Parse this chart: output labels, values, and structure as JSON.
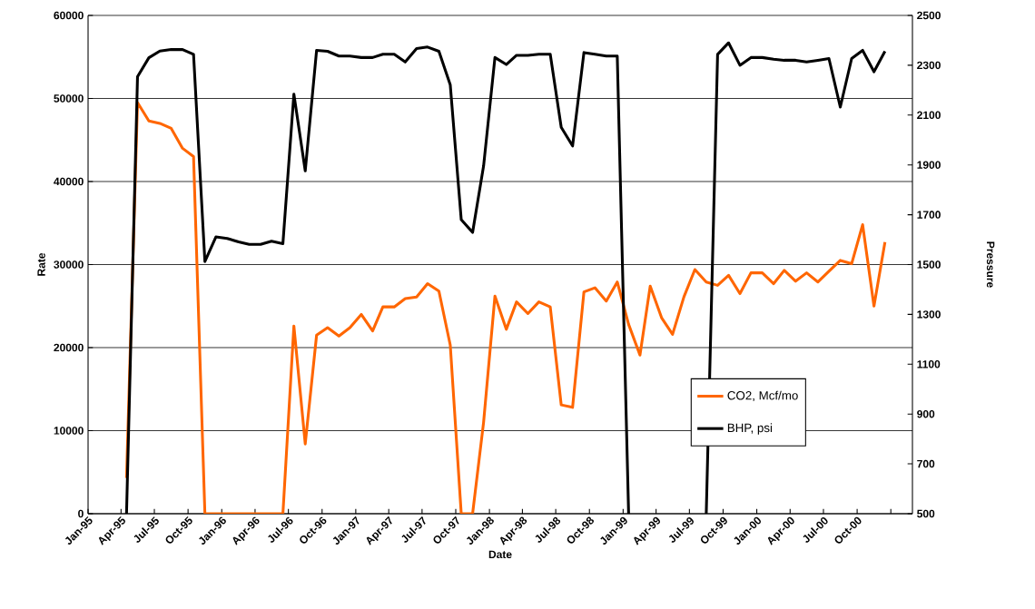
{
  "chart_data": {
    "type": "line",
    "xlabel": "Date",
    "ylabel": "Rate",
    "y2label": "Pressure",
    "x": [
      "1995-04-16",
      "1995-05-16",
      "1995-06-16",
      "1995-07-16",
      "1995-08-16",
      "1995-09-16",
      "1995-10-16",
      "1995-11-16",
      "1995-12-16",
      "1996-01-16",
      "1996-02-16",
      "1996-03-16",
      "1996-04-16",
      "1996-05-16",
      "1996-06-16",
      "1996-07-16",
      "1996-08-16",
      "1996-09-16",
      "1996-10-16",
      "1996-11-16",
      "1996-12-16",
      "1997-01-16",
      "1997-02-16",
      "1997-03-16",
      "1997-04-16",
      "1997-05-16",
      "1997-06-16",
      "1997-07-16",
      "1997-08-16",
      "1997-09-16",
      "1997-10-16",
      "1997-11-16",
      "1997-12-16",
      "1998-01-16",
      "1998-02-16",
      "1998-03-16",
      "1998-04-16",
      "1998-05-16",
      "1998-06-16",
      "1998-07-16",
      "1998-08-16",
      "1998-09-16",
      "1998-10-16",
      "1998-11-16",
      "1998-12-16",
      "1999-01-16",
      "1999-02-16",
      "1999-03-16",
      "1999-04-16",
      "1999-05-16",
      "1999-06-16",
      "1999-07-16",
      "1999-08-16",
      "1999-09-16",
      "1999-10-16",
      "1999-11-16",
      "1999-12-16",
      "2000-01-16",
      "2000-02-16",
      "2000-03-16",
      "2000-04-16",
      "2000-05-16",
      "2000-06-16",
      "2000-07-16",
      "2000-08-16",
      "2000-09-16",
      "2000-10-16",
      "2000-11-16",
      "2000-12-16"
    ],
    "series": [
      {
        "name": "CO2, Mcf/mo",
        "color": "#ff6600",
        "values": [
          4300,
          49500,
          47300,
          47000,
          46400,
          44000,
          43000,
          0,
          0,
          0,
          0,
          0,
          0,
          0,
          0,
          22600,
          8400,
          21500,
          22400,
          21400,
          22400,
          24000,
          22000,
          24900,
          24900,
          25900,
          26100,
          27700,
          26800,
          20300,
          0,
          0,
          11000,
          26200,
          22200,
          25500,
          24100,
          25500,
          24900,
          13100,
          12800,
          26700,
          27200,
          25600,
          27900,
          22800,
          19100,
          27400,
          23600,
          21600,
          26100,
          29400,
          27900,
          27500,
          28700,
          26500,
          29000,
          29000,
          27700,
          29300,
          28000,
          29000,
          27900,
          29200,
          30500,
          30100,
          34800,
          25000,
          32700
        ]
      },
      {
        "name": "BHP, psi",
        "color": "#000000",
        "axis": "y2",
        "values": [
          500,
          2254,
          2330,
          2357,
          2363,
          2363,
          2344,
          1512,
          1611,
          1605,
          1591,
          1581,
          1581,
          1594,
          1584,
          2184,
          1876,
          2360,
          2356,
          2337,
          2337,
          2331,
          2331,
          2344,
          2344,
          2313,
          2367,
          2373,
          2356,
          2221,
          1680,
          1629,
          1896,
          2331,
          2303,
          2340,
          2340,
          2344,
          2344,
          2051,
          1976,
          2351,
          2344,
          2337,
          2337,
          500,
          null,
          null,
          null,
          null,
          null,
          null,
          500,
          2344,
          2390,
          2300,
          2331,
          2331,
          2324,
          2320,
          2320,
          2313,
          2320,
          2327,
          2132,
          2327,
          2360,
          2274,
          2356
        ]
      }
    ],
    "xlim": [
      "1995-01-01",
      "2001-03-01"
    ],
    "xticks": [
      {
        "value": "1995-01-01",
        "label": "Jan-95"
      },
      {
        "value": "1995-04-01",
        "label": "Apr-95"
      },
      {
        "value": "1995-07-01",
        "label": "Jul-95"
      },
      {
        "value": "1995-10-01",
        "label": "Oct-95"
      },
      {
        "value": "1996-01-01",
        "label": "Jan-96"
      },
      {
        "value": "1996-04-01",
        "label": "Apr-96"
      },
      {
        "value": "1996-07-01",
        "label": "Jul-96"
      },
      {
        "value": "1996-10-01",
        "label": "Oct-96"
      },
      {
        "value": "1997-01-01",
        "label": "Jan-97"
      },
      {
        "value": "1997-04-01",
        "label": "Apr-97"
      },
      {
        "value": "1997-07-01",
        "label": "Jul-97"
      },
      {
        "value": "1997-10-01",
        "label": "Oct-97"
      },
      {
        "value": "1998-01-01",
        "label": "Jan-98"
      },
      {
        "value": "1998-04-01",
        "label": "Apr-98"
      },
      {
        "value": "1998-07-01",
        "label": "Jul-98"
      },
      {
        "value": "1998-10-01",
        "label": "Oct-98"
      },
      {
        "value": "1999-01-01",
        "label": "Jan-99"
      },
      {
        "value": "1999-04-01",
        "label": "Apr-99"
      },
      {
        "value": "1999-07-01",
        "label": "Jul-99"
      },
      {
        "value": "1999-10-01",
        "label": "Oct-99"
      },
      {
        "value": "2000-01-01",
        "label": "Jan-00"
      },
      {
        "value": "2000-04-01",
        "label": "Apr-00"
      },
      {
        "value": "2000-07-01",
        "label": "Jul-00"
      },
      {
        "value": "2000-10-01",
        "label": "Oct-00"
      },
      {
        "value": "2001-01-01",
        "label": null
      }
    ],
    "ylim": [
      0,
      60000
    ],
    "yticks": [
      0,
      10000,
      20000,
      30000,
      40000,
      50000,
      60000
    ],
    "y2lim": [
      500,
      2500
    ],
    "y2ticks": [
      500,
      700,
      900,
      1100,
      1300,
      1500,
      1700,
      1900,
      2100,
      2300,
      2500
    ],
    "grid": "y",
    "legend": "bottom right"
  }
}
